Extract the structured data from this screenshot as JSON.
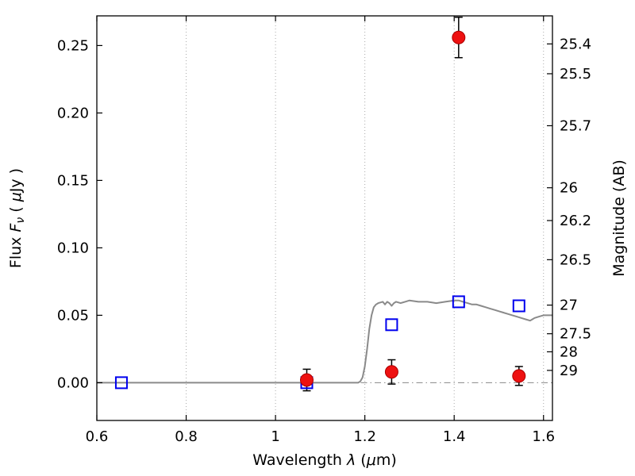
{
  "chart_data": {
    "type": "line",
    "title": "",
    "xlabel_rich": [
      {
        "t": "Wavelength  "
      },
      {
        "t": "λ",
        "style": "italic"
      },
      {
        "t": " ("
      },
      {
        "t": "μ",
        "style": "italic"
      },
      {
        "t": "m)"
      }
    ],
    "ylabel_left_rich": [
      {
        "t": "Flux  "
      },
      {
        "t": "F",
        "style": "italic"
      },
      {
        "t": "ν",
        "style": "sub-italic"
      },
      {
        "t": "  ( "
      },
      {
        "t": "μ",
        "style": "italic"
      },
      {
        "t": "Jy )"
      }
    ],
    "ylabel_right_rich": [
      {
        "t": "Magnitude (AB)"
      }
    ],
    "xlim": [
      0.6,
      1.62
    ],
    "ylim_flux": [
      -0.028,
      0.272
    ],
    "ab_zeropoint_ujy": 23.9,
    "grid": {
      "vertical_dotted": true,
      "horizontal": false,
      "zero_line_dashdot": true
    },
    "x_ticks": [
      {
        "v": 0.6,
        "label": "0.6"
      },
      {
        "v": 0.8,
        "label": "0.8"
      },
      {
        "v": 1.0,
        "label": "1"
      },
      {
        "v": 1.2,
        "label": "1.2"
      },
      {
        "v": 1.4,
        "label": "1.4"
      },
      {
        "v": 1.6,
        "label": "1.6"
      }
    ],
    "y_ticks_left": [
      {
        "v": 0.0,
        "label": "0.00"
      },
      {
        "v": 0.05,
        "label": "0.05"
      },
      {
        "v": 0.1,
        "label": "0.10"
      },
      {
        "v": 0.15,
        "label": "0.15"
      },
      {
        "v": 0.2,
        "label": "0.20"
      },
      {
        "v": 0.25,
        "label": "0.25"
      }
    ],
    "y_ticks_right_mag": [
      {
        "mag": 25.4,
        "label": "25.4"
      },
      {
        "mag": 25.5,
        "label": "25.5"
      },
      {
        "mag": 25.7,
        "label": "25.7"
      },
      {
        "mag": 26.0,
        "label": "26"
      },
      {
        "mag": 26.2,
        "label": "26.2"
      },
      {
        "mag": 26.5,
        "label": "26.5"
      },
      {
        "mag": 27.0,
        "label": "27"
      },
      {
        "mag": 27.5,
        "label": "27.5"
      },
      {
        "mag": 28.0,
        "label": "28"
      },
      {
        "mag": 29.0,
        "label": "29"
      }
    ],
    "colors": {
      "spectrum": "#8a8a8a",
      "model_marker": "#0000ee",
      "observed_marker": "#ee1111",
      "observed_edge": "#aa0000",
      "error_bar": "#000000",
      "grid": "#aaaaaa",
      "zero_line": "#888888",
      "frame": "#000000"
    },
    "series": [
      {
        "name": "model-spectrum",
        "type": "line",
        "x": [
          0.6,
          0.7,
          0.8,
          0.9,
          1.0,
          1.1,
          1.15,
          1.185,
          1.19,
          1.195,
          1.2,
          1.205,
          1.21,
          1.215,
          1.22,
          1.225,
          1.23,
          1.24,
          1.245,
          1.25,
          1.255,
          1.26,
          1.265,
          1.27,
          1.28,
          1.29,
          1.3,
          1.32,
          1.34,
          1.36,
          1.38,
          1.4,
          1.41,
          1.42,
          1.43,
          1.44,
          1.45,
          1.46,
          1.47,
          1.48,
          1.49,
          1.5,
          1.51,
          1.52,
          1.53,
          1.54,
          1.55,
          1.56,
          1.57,
          1.575,
          1.58,
          1.59,
          1.6,
          1.61,
          1.62
        ],
        "y": [
          0,
          0,
          0,
          0,
          0,
          0,
          0,
          0,
          0.001,
          0.004,
          0.012,
          0.025,
          0.04,
          0.05,
          0.056,
          0.058,
          0.059,
          0.06,
          0.058,
          0.06,
          0.059,
          0.057,
          0.059,
          0.06,
          0.059,
          0.06,
          0.061,
          0.06,
          0.06,
          0.059,
          0.06,
          0.061,
          0.061,
          0.06,
          0.059,
          0.058,
          0.058,
          0.057,
          0.056,
          0.055,
          0.054,
          0.053,
          0.052,
          0.051,
          0.05,
          0.049,
          0.048,
          0.047,
          0.046,
          0.047,
          0.048,
          0.049,
          0.05,
          0.05,
          0.05
        ]
      },
      {
        "name": "model-photometry",
        "type": "scatter",
        "marker": "open-square",
        "points": [
          {
            "x": 0.655,
            "y": 0.0
          },
          {
            "x": 1.07,
            "y": 0.0
          },
          {
            "x": 1.26,
            "y": 0.043
          },
          {
            "x": 1.41,
            "y": 0.06
          },
          {
            "x": 1.545,
            "y": 0.057
          }
        ]
      },
      {
        "name": "observed-photometry",
        "type": "scatter",
        "marker": "filled-circle",
        "points": [
          {
            "x": 1.07,
            "y": 0.002,
            "yerr": 0.008
          },
          {
            "x": 1.26,
            "y": 0.008,
            "yerr": 0.009
          },
          {
            "x": 1.41,
            "y": 0.256,
            "yerr": 0.015
          },
          {
            "x": 1.545,
            "y": 0.005,
            "yerr": 0.007
          }
        ]
      }
    ]
  }
}
